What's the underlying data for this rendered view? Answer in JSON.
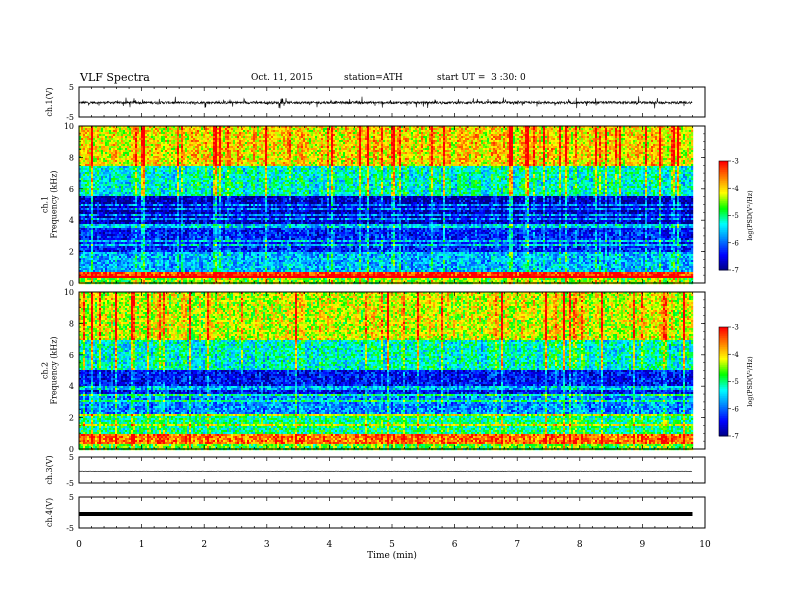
{
  "header": {
    "title": "VLF Spectra",
    "date": "Oct. 11, 2015",
    "station": "station=ATH",
    "start": "start UT =  3 :30: 0"
  },
  "colors": {
    "spectrogram_scale": [
      "#000080",
      "#0000ff",
      "#0080ff",
      "#00ffff",
      "#00ff00",
      "#ffff00",
      "#ff8000",
      "#ff0000"
    ],
    "trace": "#000000"
  },
  "chart_data": [
    {
      "type": "line",
      "panel": "ch1-waveform",
      "ylabel": "ch.1(V)",
      "yticks": [
        "5",
        "-5"
      ],
      "ylim": [
        -5,
        5
      ],
      "xlim": [
        0,
        10
      ],
      "data_end_min": 9.8,
      "mean_v": -0.2,
      "noise_v": 0.4,
      "note": "noisy trace near zero"
    },
    {
      "type": "heatmap",
      "panel": "ch1-spectrogram",
      "ylabel": [
        "ch.1",
        "Frequency (kHz)"
      ],
      "yticks": [
        "0",
        "2",
        "4",
        "6",
        "8",
        "10"
      ],
      "ylim": [
        0,
        10
      ],
      "xlim": [
        0,
        10
      ],
      "data_end_min": 9.8,
      "colorbar": {
        "label": "log(PSD(V²/Hz)",
        "ticks": [
          "-3",
          "-4",
          "-5",
          "-6",
          "-7"
        ],
        "range": [
          -7,
          -3
        ]
      },
      "bands": [
        {
          "f": [
            0.0,
            0.3
          ],
          "logpsd": -4.5
        },
        {
          "f": [
            0.3,
            0.7
          ],
          "logpsd": -3.2
        },
        {
          "f": [
            0.7,
            2.0
          ],
          "logpsd": -5.6
        },
        {
          "f": [
            2.0,
            3.8
          ],
          "logpsd": -6.3
        },
        {
          "f": [
            3.8,
            5.5
          ],
          "logpsd": -6.7
        },
        {
          "f": [
            5.5,
            7.5
          ],
          "logpsd": -5.2
        },
        {
          "f": [
            7.5,
            10.0
          ],
          "logpsd": -4.0
        }
      ]
    },
    {
      "type": "heatmap",
      "panel": "ch2-spectrogram",
      "ylabel": [
        "ch.2",
        "Frequency (kHz)"
      ],
      "yticks": [
        "0",
        "2",
        "4",
        "6",
        "8",
        "10"
      ],
      "ylim": [
        0,
        10
      ],
      "xlim": [
        0,
        10
      ],
      "data_end_min": 9.8,
      "colorbar": {
        "label": "log(PSD(V²/Hz)",
        "ticks": [
          "-3",
          "-4",
          "-5",
          "-6",
          "-7"
        ],
        "range": [
          -7,
          -3
        ]
      },
      "bands": [
        {
          "f": [
            0.0,
            0.3
          ],
          "logpsd": -4.6
        },
        {
          "f": [
            0.3,
            0.9
          ],
          "logpsd": -3.5
        },
        {
          "f": [
            0.9,
            2.2
          ],
          "logpsd": -5.0
        },
        {
          "f": [
            2.2,
            3.5
          ],
          "logpsd": -5.8
        },
        {
          "f": [
            3.5,
            5.0
          ],
          "logpsd": -6.4
        },
        {
          "f": [
            5.0,
            7.0
          ],
          "logpsd": -5.2
        },
        {
          "f": [
            7.0,
            10.0
          ],
          "logpsd": -4.2
        }
      ]
    },
    {
      "type": "line",
      "panel": "ch3-waveform",
      "ylabel": "ch.3(V)",
      "yticks": [
        "5",
        "-5"
      ],
      "ylim": [
        -5,
        5
      ],
      "xlim": [
        0,
        10
      ],
      "data_end_min": 9.8,
      "mean_v": -0.5,
      "noise_v": 0.05
    },
    {
      "type": "line",
      "panel": "ch4-waveform",
      "ylabel": "ch.4(V)",
      "yticks": [
        "5",
        "-5"
      ],
      "ylim": [
        -5,
        5
      ],
      "xlim": [
        0,
        10
      ],
      "data_end_min": 9.8,
      "mean_v": -0.5,
      "noise_v": 0.0
    }
  ],
  "xaxis": {
    "label": "Time (min)",
    "ticks": [
      "0",
      "1",
      "2",
      "3",
      "4",
      "5",
      "6",
      "7",
      "8",
      "9",
      "10"
    ]
  }
}
